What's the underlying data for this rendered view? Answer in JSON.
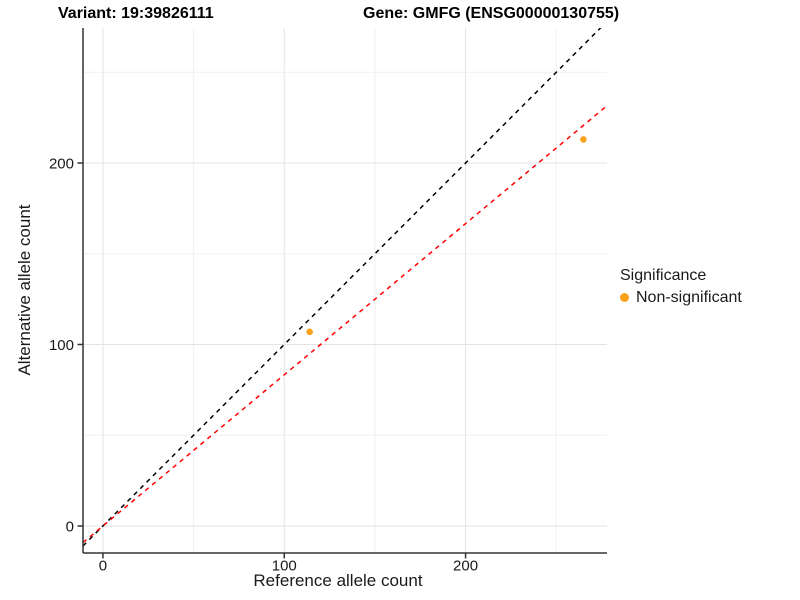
{
  "header": {
    "variant_title": "Variant: 19:39826111",
    "gene_title": "Gene: GMFG (ENSG00000130755)"
  },
  "chart_data": {
    "type": "scatter",
    "title": "Variant: 19:39826111    Gene: GMFG (ENSG00000130755)",
    "xlabel": "Reference allele count",
    "ylabel": "Alternative allele count",
    "xlim": [
      -11,
      278
    ],
    "ylim": [
      -14.9,
      274.4
    ],
    "x_ticks": [
      {
        "value": 0,
        "label": "0"
      },
      {
        "value": 100,
        "label": "100"
      },
      {
        "value": 200,
        "label": "200"
      }
    ],
    "y_ticks": [
      {
        "value": 0,
        "label": "0"
      },
      {
        "value": 100,
        "label": "100"
      },
      {
        "value": 200,
        "label": "200"
      }
    ],
    "x_minor_ticks": [
      50,
      150,
      250
    ],
    "y_minor_ticks": [
      50,
      150,
      250
    ],
    "grid": true,
    "points": [
      {
        "x": 114,
        "y": 107,
        "series": "Non-significant"
      },
      {
        "x": 265,
        "y": 213,
        "series": "Non-significant"
      }
    ],
    "point_color": "#FAA21B",
    "lines": [
      {
        "name": "identity-line",
        "slope": 1,
        "intercept": 0,
        "color": "#000000",
        "dash": [
          4.5,
          4.5
        ]
      },
      {
        "name": "allelic-ratio-fit-line",
        "slope": 0.833,
        "intercept": 0,
        "color": "#FF0000",
        "dash": [
          4.5,
          4.5
        ]
      }
    ],
    "legend": {
      "position": "right",
      "title": "Significance",
      "items": [
        {
          "label": "Non-significant",
          "color": "#FAA21B"
        }
      ]
    },
    "colors": {
      "grid_major": "#E3E3E3",
      "grid_minor": "#F0F0F0",
      "axis_line": "#333333",
      "tick_text": "#1a1a1a"
    }
  }
}
